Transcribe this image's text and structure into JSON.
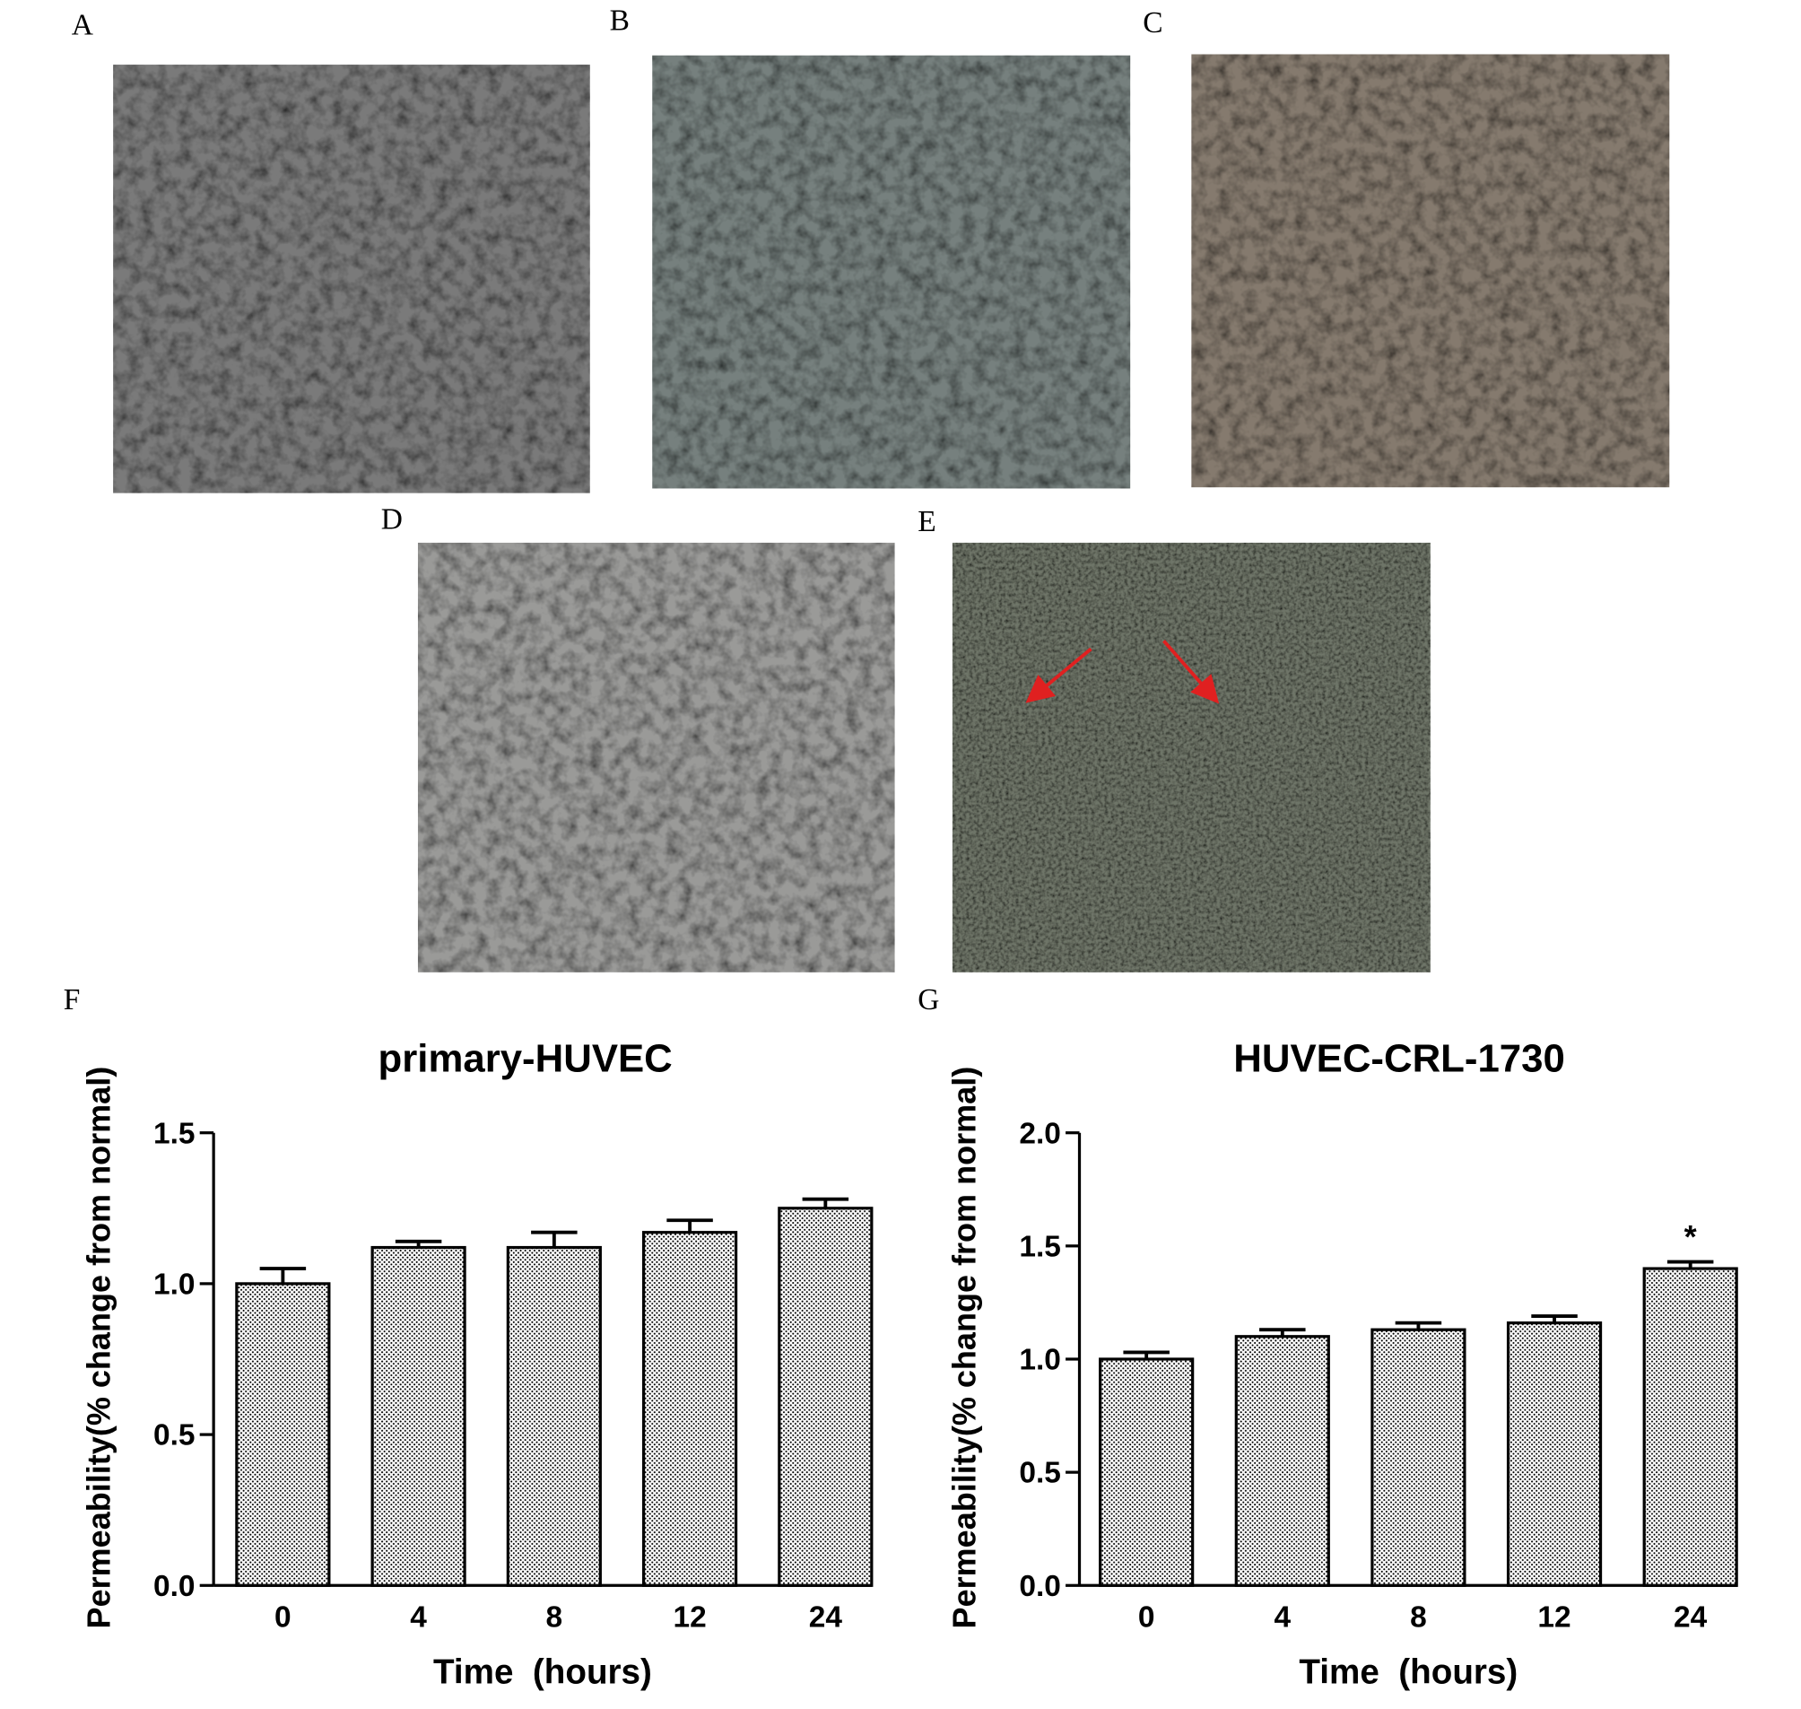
{
  "panel_labels": [
    "A",
    "B",
    "C",
    "D",
    "E",
    "F",
    "G"
  ],
  "chart_data": [
    {
      "type": "bar",
      "title": "primary-HUVEC",
      "xlabel": "Time  (hours)",
      "ylabel": "Permeability(% change from normal)",
      "categories": [
        "0",
        "4",
        "8",
        "12",
        "24"
      ],
      "values": [
        1.0,
        1.12,
        1.12,
        1.17,
        1.25
      ],
      "errors": [
        0.05,
        0.02,
        0.05,
        0.04,
        0.03
      ],
      "color": "#000000",
      "ylim": [
        0,
        1.5
      ],
      "yticks": [
        {
          "value": 0,
          "label": "0.0"
        },
        {
          "value": 0.5,
          "label": "0.5"
        },
        {
          "value": 1,
          "label": "1.0"
        },
        {
          "value": 1.5,
          "label": "1.5"
        }
      ]
    },
    {
      "type": "bar",
      "title": "HUVEC-CRL-1730",
      "xlabel": "Time  (hours)",
      "ylabel": "Permeability(% change from normal)",
      "categories": [
        "0",
        "4",
        "8",
        "12",
        "24"
      ],
      "values": [
        1.0,
        1.1,
        1.13,
        1.16,
        1.4
      ],
      "errors": [
        0.03,
        0.03,
        0.03,
        0.03,
        0.03
      ],
      "color": "#000000",
      "ylim": [
        0,
        2.0
      ],
      "yticks": [
        {
          "value": 0,
          "label": "0.0"
        },
        {
          "value": 0.5,
          "label": "0.5"
        },
        {
          "value": 1,
          "label": "1.0"
        },
        {
          "value": 1.5,
          "label": "1.5"
        },
        {
          "value": 2,
          "label": "2.0"
        }
      ],
      "annotations": [
        {
          "text": "*",
          "x": "24"
        }
      ]
    }
  ]
}
